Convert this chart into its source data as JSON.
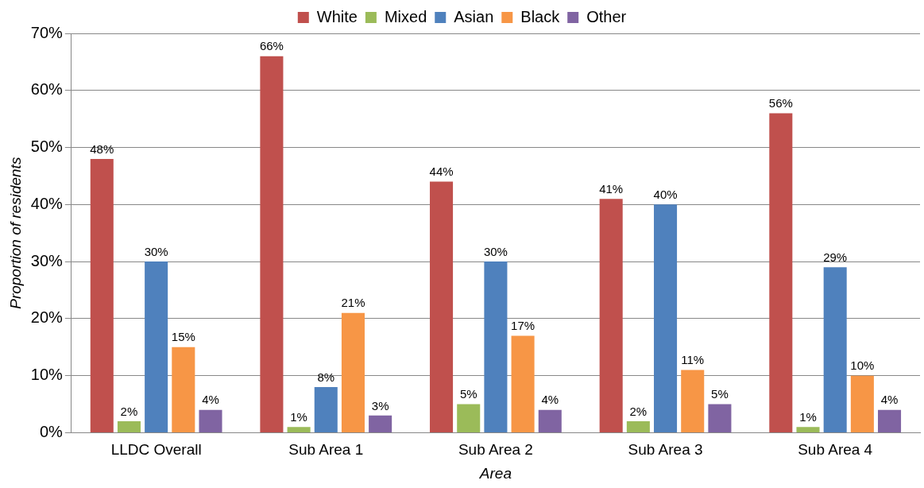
{
  "chart_data": {
    "type": "bar",
    "xlabel": "Area",
    "ylabel": "Proportion of residents",
    "categories": [
      "LLDC Overall",
      "Sub Area 1",
      "Sub Area 2",
      "Sub Area 3",
      "Sub Area 4"
    ],
    "series": [
      {
        "name": "White",
        "color": "#c0504d",
        "values": [
          48,
          66,
          44,
          41,
          56
        ],
        "value_labels": [
          "48%",
          "66%",
          "44%",
          "41%",
          "56%"
        ]
      },
      {
        "name": "Mixed",
        "color": "#9bbb59",
        "values": [
          2,
          1,
          5,
          2,
          1
        ],
        "value_labels": [
          "2%",
          "1%",
          "5%",
          "2%",
          "1%"
        ]
      },
      {
        "name": "Asian",
        "color": "#4f81bd",
        "values": [
          30,
          8,
          30,
          40,
          29
        ],
        "value_labels": [
          "30%",
          "8%",
          "30%",
          "40%",
          "29%"
        ]
      },
      {
        "name": "Black",
        "color": "#f79646",
        "values": [
          15,
          21,
          17,
          11,
          10
        ],
        "value_labels": [
          "15%",
          "21%",
          "17%",
          "11%",
          "10%"
        ]
      },
      {
        "name": "Other",
        "color": "#8064a2",
        "values": [
          4,
          3,
          4,
          5,
          4
        ],
        "value_labels": [
          "4%",
          "3%",
          "4%",
          "5%",
          "4%"
        ]
      }
    ],
    "ylim": [
      0,
      70
    ],
    "yticks": [
      {
        "value": 0,
        "label": "0%"
      },
      {
        "value": 10,
        "label": "10%"
      },
      {
        "value": 20,
        "label": "20%"
      },
      {
        "value": 30,
        "label": "30%"
      },
      {
        "value": 40,
        "label": "40%"
      },
      {
        "value": 50,
        "label": "50%"
      },
      {
        "value": 60,
        "label": "60%"
      },
      {
        "value": 70,
        "label": "70%"
      }
    ],
    "grid": "y",
    "legend": "top"
  }
}
